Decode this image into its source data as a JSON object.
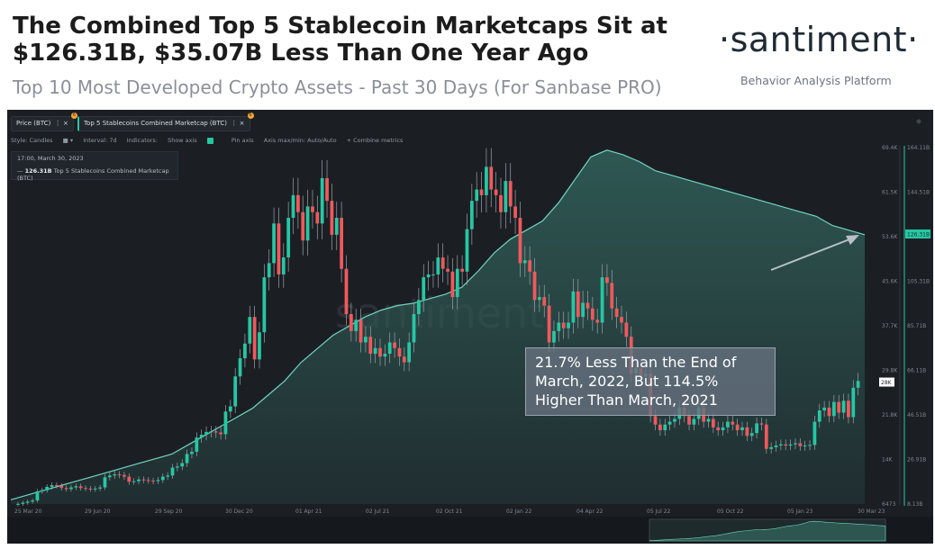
{
  "header": {
    "title": "The Combined Top 5 Stablecoin Marketcaps Sit at $126.31B, $35.07B Less Than One Year Ago",
    "subtitle": "Top 10 Most Developed Crypto Assets - Past 30 Days (For Sanbase PRO)",
    "brand": "·santiment·",
    "brand_sub": "Behavior Analysis Platform"
  },
  "toolbar": {
    "tab_price": "Price (BTC)",
    "tab_stable": "Top 5 Stablecoins Combined Marketcap (BTC)",
    "tab_badge": "6",
    "style": "Style: Candles",
    "interval": "Interval: 7d",
    "indicators": "Indicators:",
    "show_axis": "Show axis",
    "pin_axis": "Pin axis",
    "axis_minmax": "Axis max/min: Auto/Auto",
    "combine": "Combine metrics"
  },
  "tooltip": {
    "date": "17:00, March 30, 2023",
    "value": "126.31B",
    "label": "Top 5 Stablecoins Combined Marketcap (BTC)"
  },
  "annotation": {
    "text": "21.7% Less Than the End of March, 2022, But 114.5% Higher Than March, 2021"
  },
  "watermark": "santiment",
  "colors": {
    "background": "#1b1f24",
    "area_fill": "#2f5a55",
    "area_line": "#6fd5c2",
    "candle_up": "#26c7a3",
    "candle_down": "#f0595c",
    "accent": "#26c7a3"
  },
  "chart_data": {
    "type": "candlestick+area",
    "x_tick_labels": [
      "25 Mar 20",
      "29 Jun 20",
      "29 Sep 20",
      "30 Dec 20",
      "01 Apr 21",
      "02 Jul 21",
      "02 Oct 21",
      "02 Jan 22",
      "04 Apr 22",
      "05 Jul 22",
      "05 Oct 22",
      "05 Jan 23",
      "30 Mar 23"
    ],
    "price_axis": {
      "ticks": [
        "69.4K",
        "61.5K",
        "53.6K",
        "45.6K",
        "37.7K",
        "29.8K",
        "21.8K",
        "14K",
        "6473"
      ],
      "range": [
        6473,
        69400
      ]
    },
    "marketcap_axis": {
      "ticks": [
        "164.11B",
        "144.51B",
        "124.91B",
        "105.31B",
        "85.71B",
        "66.11B",
        "46.51B",
        "26.91B",
        "8.13B"
      ],
      "range": [
        8.13,
        164.11
      ]
    },
    "current_price_label": "28K",
    "current_marketcap_label": "126.31B",
    "price_btc": [
      6500,
      6700,
      6900,
      7100,
      8700,
      8900,
      9500,
      9800,
      9700,
      9300,
      9100,
      9400,
      9600,
      9300,
      9200,
      9100,
      9200,
      9400,
      11200,
      11500,
      11700,
      11600,
      11300,
      10400,
      10500,
      10800,
      10700,
      10600,
      10500,
      10700,
      11300,
      11500,
      12900,
      13100,
      13700,
      15300,
      15700,
      18200,
      18700,
      19200,
      19300,
      19100,
      18800,
      22800,
      23700,
      29000,
      32200,
      34800,
      39500,
      32000,
      36800,
      46500,
      49000,
      56000,
      47000,
      50000,
      57000,
      61000,
      58000,
      53000,
      59000,
      58000,
      56000,
      64000,
      60000,
      54000,
      57000,
      48000,
      40000,
      37000,
      39000,
      35000,
      36000,
      33000,
      34000,
      32500,
      33000,
      35000,
      34000,
      32500,
      31500,
      35000,
      40000,
      42500,
      46500,
      47000,
      47000,
      50000,
      48000,
      47500,
      43000,
      48000,
      47500,
      55000,
      60000,
      62000,
      61000,
      66000,
      62000,
      61000,
      58000,
      63500,
      59000,
      57000,
      49000,
      49500,
      47500,
      42500,
      43000,
      41500,
      35000,
      37000,
      38500,
      37500,
      38500,
      44000,
      39500,
      42000,
      41000,
      39000,
      38500,
      46500,
      45500,
      41000,
      39500,
      38500,
      36000,
      29500,
      30500,
      29000,
      29500,
      22000,
      20500,
      19500,
      20500,
      21000,
      21500,
      23500,
      22000,
      20500,
      21500,
      23500,
      21000,
      21500,
      20000,
      19500,
      20000,
      21000,
      20500,
      19500,
      20000,
      18500,
      19000,
      20700,
      20500,
      16200,
      16500,
      16800,
      17000,
      16800,
      17000,
      17200,
      16700,
      16800,
      16900,
      21000,
      23000,
      23500,
      22000,
      24500,
      22600,
      24700,
      21800,
      27000,
      28200
    ],
    "stablecoin_marketcap_btc_billions": [
      10,
      12,
      14,
      16,
      18,
      20,
      22,
      24,
      26,
      28,
      30,
      34,
      38,
      42,
      46,
      50,
      56,
      62,
      70,
      76,
      82,
      86,
      90,
      93,
      95,
      96,
      98,
      100,
      103,
      110,
      118,
      124,
      128,
      132,
      140,
      150,
      160,
      163,
      161,
      158,
      154,
      152,
      150,
      148,
      146,
      144,
      142,
      140,
      138,
      136,
      134,
      130,
      128,
      126
    ]
  }
}
